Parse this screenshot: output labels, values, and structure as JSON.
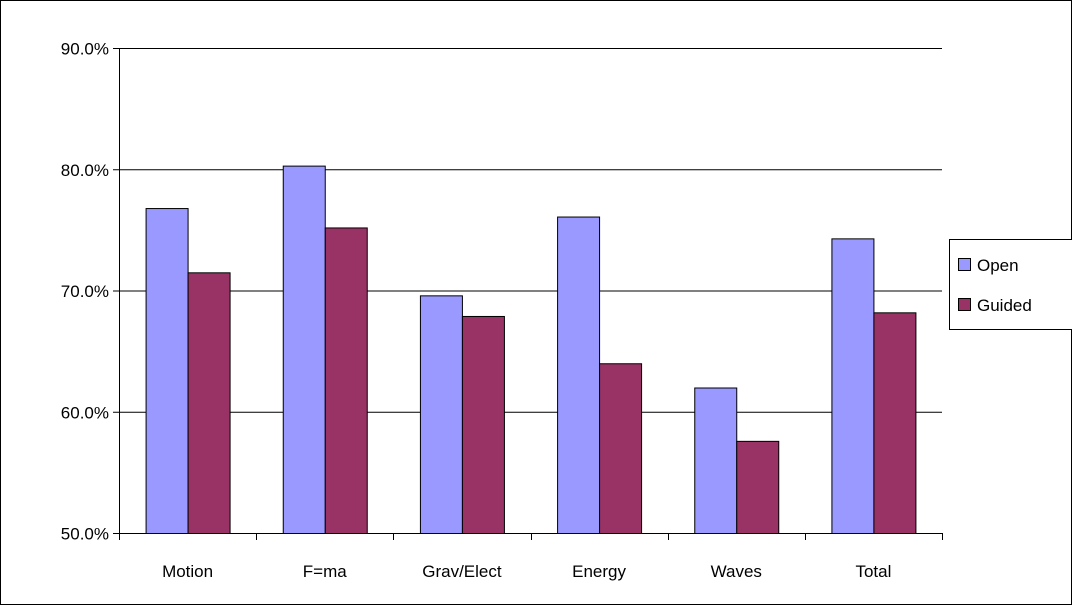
{
  "chart_data": {
    "type": "bar",
    "title": "",
    "xlabel": "",
    "ylabel": "",
    "categories": [
      "Motion",
      "F=ma",
      "Grav/Elect",
      "Energy",
      "Waves",
      "Total"
    ],
    "series": [
      {
        "name": "Open",
        "color": "#9999ff",
        "values": [
          76.8,
          80.3,
          69.6,
          76.1,
          62.0,
          74.3
        ]
      },
      {
        "name": "Guided",
        "color": "#993366",
        "values": [
          71.5,
          75.2,
          67.9,
          64.0,
          57.6,
          68.2
        ]
      }
    ],
    "ylim": [
      50,
      90
    ],
    "yticks": [
      50,
      60,
      70,
      80,
      90
    ],
    "ytick_labels": [
      "50.0%",
      "60.0%",
      "70.0%",
      "80.0%",
      "90.0%"
    ],
    "grid": "horizontal",
    "legend": "right"
  }
}
